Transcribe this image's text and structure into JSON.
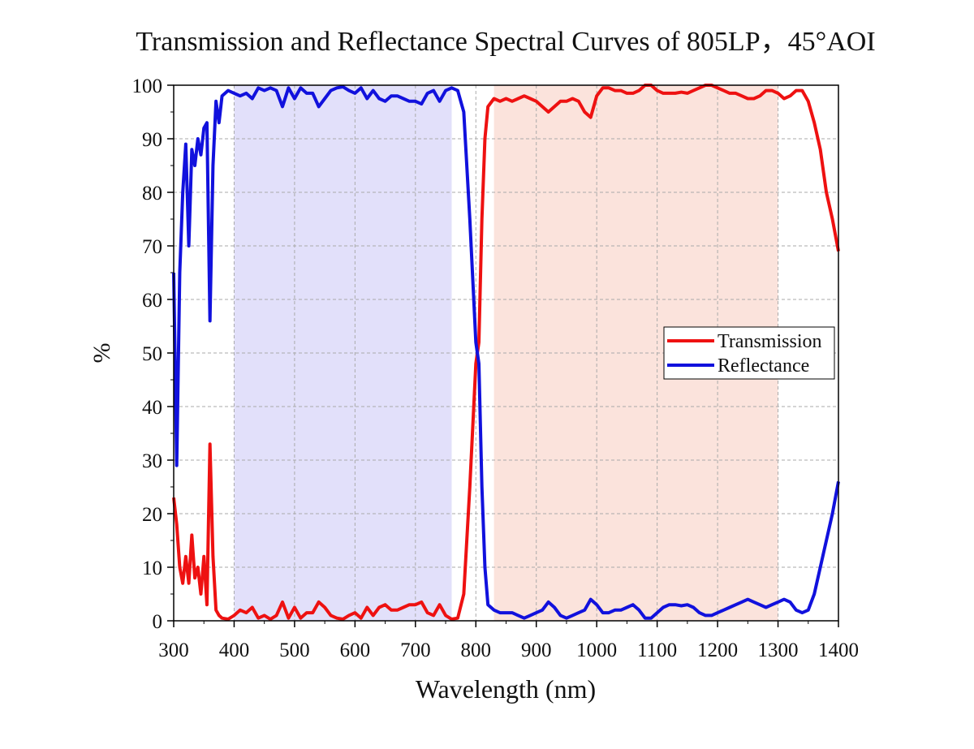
{
  "chart_data": {
    "type": "line",
    "title": "Transmission and Reflectance Spectral Curves of 805LP，45°AOI",
    "x_label": "Wavelength (nm)",
    "y_label": "%",
    "x": [
      300,
      305,
      310,
      315,
      320,
      325,
      330,
      335,
      340,
      345,
      350,
      355,
      360,
      365,
      370,
      375,
      380,
      390,
      400,
      410,
      420,
      430,
      440,
      450,
      460,
      470,
      480,
      490,
      500,
      510,
      520,
      530,
      540,
      550,
      560,
      570,
      580,
      590,
      600,
      610,
      620,
      630,
      640,
      650,
      660,
      670,
      680,
      690,
      700,
      710,
      720,
      730,
      740,
      750,
      760,
      770,
      780,
      790,
      800,
      805,
      810,
      815,
      820,
      830,
      840,
      850,
      860,
      870,
      880,
      890,
      900,
      910,
      920,
      930,
      940,
      950,
      960,
      970,
      980,
      990,
      1000,
      1010,
      1020,
      1030,
      1040,
      1050,
      1060,
      1070,
      1080,
      1090,
      1100,
      1110,
      1120,
      1130,
      1140,
      1150,
      1160,
      1170,
      1180,
      1190,
      1200,
      1210,
      1220,
      1230,
      1240,
      1250,
      1260,
      1270,
      1280,
      1290,
      1300,
      1310,
      1320,
      1330,
      1340,
      1350,
      1360,
      1370,
      1380,
      1390,
      1400
    ],
    "series": [
      {
        "name": "Transmission",
        "color": "#ee1111",
        "values": [
          23,
          18,
          10,
          7,
          12,
          7,
          16,
          8,
          10,
          5,
          12,
          3,
          33,
          12,
          2,
          1,
          0.5,
          0.3,
          1,
          2,
          1.5,
          2.5,
          0.5,
          1,
          0.3,
          1,
          3.5,
          0.5,
          2.5,
          0.5,
          1.5,
          1.5,
          3.5,
          2.5,
          1,
          0.5,
          0.3,
          1,
          1.5,
          0.5,
          2.5,
          1,
          2.5,
          3,
          2,
          2,
          2.5,
          3,
          3,
          3.5,
          1.5,
          1,
          3,
          1,
          0.3,
          0.5,
          5,
          25,
          48,
          52,
          75,
          90,
          96,
          97.5,
          97,
          97.5,
          97,
          97.5,
          98,
          97.5,
          97,
          96,
          95,
          96,
          97,
          97,
          97.5,
          97,
          95,
          94,
          98,
          99.5,
          99.5,
          99,
          99,
          98.5,
          98.5,
          99,
          100,
          100,
          99,
          98.5,
          98.5,
          98.5,
          98.7,
          98.5,
          99,
          99.5,
          100,
          100,
          99.5,
          99,
          98.5,
          98.5,
          98,
          97.5,
          97.5,
          98,
          99,
          99,
          98.5,
          97.5,
          98,
          99,
          99,
          97,
          93,
          88,
          80,
          75,
          69
        ]
      },
      {
        "name": "Reflectance",
        "color": "#1111dd",
        "values": [
          65,
          29,
          65,
          80,
          89,
          70,
          88,
          85,
          90,
          87,
          92,
          93,
          56,
          85,
          97,
          93,
          98,
          99,
          98.5,
          98,
          98.5,
          97.5,
          99.5,
          99,
          99.5,
          99,
          96,
          99.5,
          97.5,
          99.5,
          98.5,
          98.5,
          96,
          97.5,
          99,
          99.5,
          99.7,
          99,
          98.5,
          99.5,
          97.5,
          99,
          97.5,
          97,
          98,
          98,
          97.5,
          97,
          97,
          96.5,
          98.5,
          99,
          97,
          99,
          99.5,
          99,
          95,
          75,
          52,
          48,
          25,
          10,
          3,
          2,
          1.5,
          1.5,
          1.5,
          1,
          0.5,
          1,
          1.5,
          2,
          3.5,
          2.5,
          1,
          0.5,
          1,
          1.5,
          2,
          4,
          3,
          1.5,
          1.5,
          2,
          2,
          2.5,
          3,
          2,
          0.5,
          0.5,
          1.5,
          2.5,
          3,
          3,
          2.8,
          3,
          2.5,
          1.5,
          1,
          1,
          1.5,
          2,
          2.5,
          3,
          3.5,
          4,
          3.5,
          3,
          2.5,
          3,
          3.5,
          4,
          3.5,
          2,
          1.5,
          2,
          5,
          10,
          15,
          20,
          26
        ]
      }
    ],
    "shaded_regions": [
      {
        "xlim": [
          400,
          760
        ],
        "color": "#e2e0fa"
      },
      {
        "xlim": [
          830,
          1300
        ],
        "color": "#fbe3dc"
      }
    ],
    "xlim": [
      300,
      1400
    ],
    "xticks": [
      300,
      400,
      500,
      600,
      700,
      800,
      900,
      1000,
      1100,
      1200,
      1300,
      1400
    ],
    "ylim": [
      0,
      100
    ],
    "yticks": [
      0,
      10,
      20,
      30,
      40,
      50,
      60,
      70,
      80,
      90,
      100
    ],
    "grid": true,
    "legend": "right"
  }
}
